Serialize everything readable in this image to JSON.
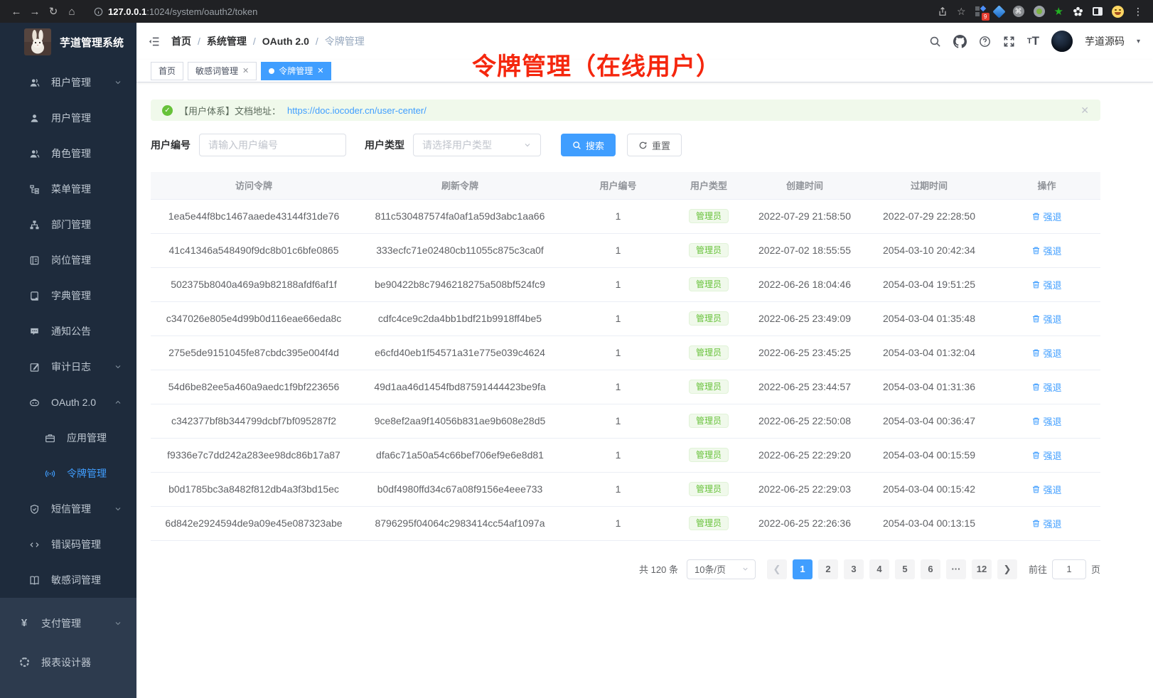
{
  "browser": {
    "url_host": "127.0.0.1",
    "url_rest": ":1024/system/oauth2/token",
    "extension_badge": "9"
  },
  "sidebar": {
    "logo_title": "芋道管理系统",
    "items": [
      {
        "name": "tenant-management",
        "icon": "users",
        "label": "租户管理",
        "chevron": "down",
        "active": false,
        "child": false,
        "section": "top"
      },
      {
        "name": "user-management",
        "icon": "user",
        "label": "用户管理",
        "chevron": null,
        "active": false,
        "child": false,
        "section": "top"
      },
      {
        "name": "role-management",
        "icon": "users",
        "label": "角色管理",
        "chevron": null,
        "active": false,
        "child": false,
        "section": "top"
      },
      {
        "name": "menu-management",
        "icon": "tree",
        "label": "菜单管理",
        "chevron": null,
        "active": false,
        "child": false,
        "section": "top"
      },
      {
        "name": "dept-management",
        "icon": "org",
        "label": "部门管理",
        "chevron": null,
        "active": false,
        "child": false,
        "section": "top"
      },
      {
        "name": "post-management",
        "icon": "postcard",
        "label": "岗位管理",
        "chevron": null,
        "active": false,
        "child": false,
        "section": "top"
      },
      {
        "name": "dict-management",
        "icon": "dict",
        "label": "字典管理",
        "chevron": null,
        "active": false,
        "child": false,
        "section": "top"
      },
      {
        "name": "notice-management",
        "icon": "notice",
        "label": "通知公告",
        "chevron": null,
        "active": false,
        "child": false,
        "section": "top"
      },
      {
        "name": "audit-log",
        "icon": "audit",
        "label": "审计日志",
        "chevron": "down",
        "active": false,
        "child": false,
        "section": "top"
      },
      {
        "name": "oauth2",
        "icon": "robot",
        "label": "OAuth 2.0",
        "chevron": "up",
        "active": false,
        "child": false,
        "section": "top"
      },
      {
        "name": "app-management",
        "icon": "briefcase",
        "label": "应用管理",
        "chevron": null,
        "active": false,
        "child": true,
        "section": "top"
      },
      {
        "name": "token-management",
        "icon": "signal",
        "label": "令牌管理",
        "chevron": null,
        "active": true,
        "child": true,
        "section": "top"
      },
      {
        "name": "sms-management",
        "icon": "shield",
        "label": "短信管理",
        "chevron": "down",
        "active": false,
        "child": false,
        "section": "top"
      },
      {
        "name": "errcode-management",
        "icon": "code",
        "label": "错误码管理",
        "chevron": null,
        "active": false,
        "child": false,
        "section": "top"
      },
      {
        "name": "sensitive-words",
        "icon": "book",
        "label": "敏感词管理",
        "chevron": null,
        "active": false,
        "child": false,
        "section": "top"
      },
      {
        "name": "pay-management",
        "icon": "yen",
        "label": "支付管理",
        "chevron": "down",
        "active": false,
        "child": false,
        "section": "bottom"
      },
      {
        "name": "report-designer",
        "icon": "report",
        "label": "报表设计器",
        "chevron": null,
        "active": false,
        "child": false,
        "section": "bottom"
      }
    ]
  },
  "header": {
    "breadcrumb": [
      "首页",
      "系统管理",
      "OAuth 2.0",
      "令牌管理"
    ],
    "user_name": "芋道源码"
  },
  "tabs": [
    {
      "label": "首页",
      "closable": false,
      "active": false
    },
    {
      "label": "敏感词管理",
      "closable": true,
      "active": false
    },
    {
      "label": "令牌管理",
      "closable": true,
      "active": true
    }
  ],
  "annotation": "令牌管理（在线用户）",
  "alert": {
    "prefix": "【用户体系】文档地址：",
    "link": "https://doc.iocoder.cn/user-center/"
  },
  "filters": {
    "user_id_label": "用户编号",
    "user_id_placeholder": "请输入用户编号",
    "user_type_label": "用户类型",
    "user_type_placeholder": "请选择用户类型",
    "search_label": "搜索",
    "reset_label": "重置"
  },
  "table": {
    "columns": [
      "访问令牌",
      "刷新令牌",
      "用户编号",
      "用户类型",
      "创建时间",
      "过期时间",
      "操作"
    ],
    "action_label": "强退",
    "rows": [
      {
        "access_token": "1ea5e44f8bc1467aaede43144f31de76",
        "refresh_token": "811c530487574fa0af1a59d3abc1aa66",
        "user_id": "1",
        "user_type": "管理员",
        "create_time": "2022-07-29 21:58:50",
        "expire_time": "2022-07-29 22:28:50"
      },
      {
        "access_token": "41c41346a548490f9dc8b01c6bfe0865",
        "refresh_token": "333ecfc71e02480cb11055c875c3ca0f",
        "user_id": "1",
        "user_type": "管理员",
        "create_time": "2022-07-02 18:55:55",
        "expire_time": "2054-03-10 20:42:34"
      },
      {
        "access_token": "502375b8040a469a9b82188afdf6af1f",
        "refresh_token": "be90422b8c7946218275a508bf524fc9",
        "user_id": "1",
        "user_type": "管理员",
        "create_time": "2022-06-26 18:04:46",
        "expire_time": "2054-03-04 19:51:25"
      },
      {
        "access_token": "c347026e805e4d99b0d116eae66eda8c",
        "refresh_token": "cdfc4ce9c2da4bb1bdf21b9918ff4be5",
        "user_id": "1",
        "user_type": "管理员",
        "create_time": "2022-06-25 23:49:09",
        "expire_time": "2054-03-04 01:35:48"
      },
      {
        "access_token": "275e5de9151045fe87cbdc395e004f4d",
        "refresh_token": "e6cfd40eb1f54571a31e775e039c4624",
        "user_id": "1",
        "user_type": "管理员",
        "create_time": "2022-06-25 23:45:25",
        "expire_time": "2054-03-04 01:32:04"
      },
      {
        "access_token": "54d6be82ee5a460a9aedc1f9bf223656",
        "refresh_token": "49d1aa46d1454fbd87591444423be9fa",
        "user_id": "1",
        "user_type": "管理员",
        "create_time": "2022-06-25 23:44:57",
        "expire_time": "2054-03-04 01:31:36"
      },
      {
        "access_token": "c342377bf8b344799dcbf7bf095287f2",
        "refresh_token": "9ce8ef2aa9f14056b831ae9b608e28d5",
        "user_id": "1",
        "user_type": "管理员",
        "create_time": "2022-06-25 22:50:08",
        "expire_time": "2054-03-04 00:36:47"
      },
      {
        "access_token": "f9336e7c7dd242a283ee98dc86b17a87",
        "refresh_token": "dfa6c71a50a54c66bef706ef9e6e8d81",
        "user_id": "1",
        "user_type": "管理员",
        "create_time": "2022-06-25 22:29:20",
        "expire_time": "2054-03-04 00:15:59"
      },
      {
        "access_token": "b0d1785bc3a8482f812db4a3f3bd15ec",
        "refresh_token": "b0df4980ffd34c67a08f9156e4eee733",
        "user_id": "1",
        "user_type": "管理员",
        "create_time": "2022-06-25 22:29:03",
        "expire_time": "2054-03-04 00:15:42"
      },
      {
        "access_token": "6d842e2924594de9a09e45e087323abe",
        "refresh_token": "8796295f04064c2983414cc54af1097a",
        "user_id": "1",
        "user_type": "管理员",
        "create_time": "2022-06-25 22:26:36",
        "expire_time": "2054-03-04 00:13:15"
      }
    ]
  },
  "pagination": {
    "total_label": "共 120 条",
    "page_size": "10条/页",
    "pages": [
      "1",
      "2",
      "3",
      "4",
      "5",
      "6",
      "···",
      "12"
    ],
    "active_page": "1",
    "goto_label": "前往",
    "goto_value": "1",
    "page_suffix": "页"
  },
  "colors": {
    "accent": "#409eff",
    "success": "#67c23a",
    "annotation_red": "#f5270e",
    "sidebar_bg": "#1e2b3c"
  }
}
